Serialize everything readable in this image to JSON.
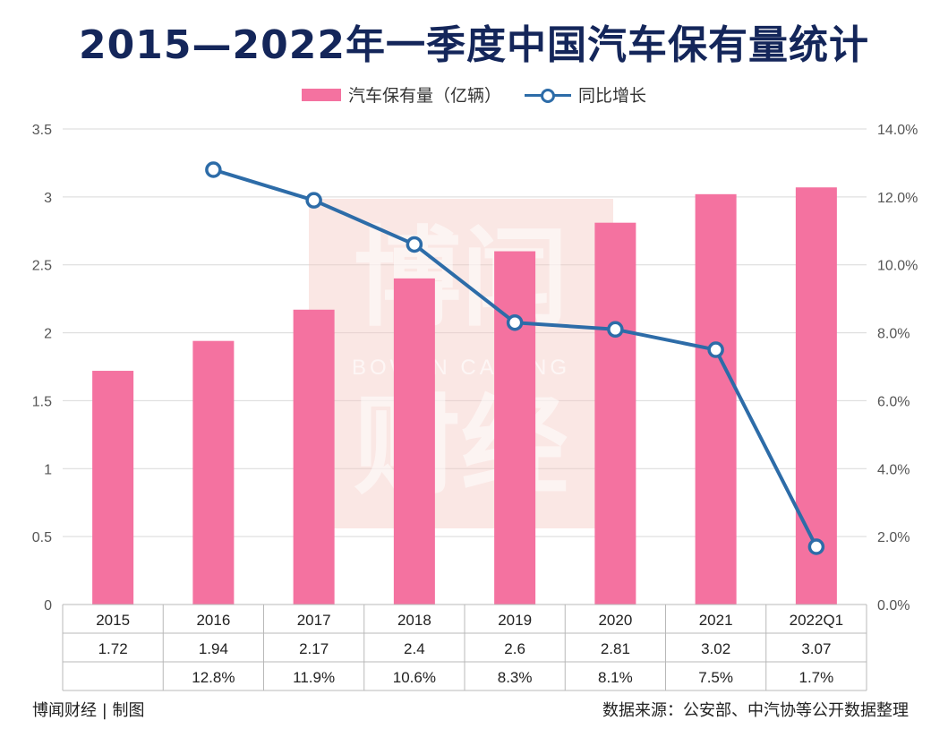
{
  "title": "2015—2022年一季度中国汽车保有量统计",
  "legend": {
    "bar_label": "汽车保有量（亿辆）",
    "line_label": "同比增长"
  },
  "colors": {
    "bar": "#f472a0",
    "line": "#2d6ca8",
    "title": "#14265a",
    "grid": "#d9d9d9"
  },
  "chart_data": {
    "type": "bar",
    "categories": [
      "2015",
      "2016",
      "2017",
      "2018",
      "2019",
      "2020",
      "2021",
      "2022Q1"
    ],
    "series": [
      {
        "name": "汽车保有量（亿辆）",
        "type": "bar",
        "axis": "left",
        "values": [
          1.72,
          1.94,
          2.17,
          2.4,
          2.6,
          2.81,
          3.02,
          3.07
        ]
      },
      {
        "name": "同比增长",
        "type": "line",
        "axis": "right",
        "values": [
          null,
          12.8,
          11.9,
          10.6,
          8.3,
          8.1,
          7.5,
          1.7
        ]
      }
    ],
    "ylim_left": [
      0,
      3.5
    ],
    "yticks_left": [
      "0",
      "0.5",
      "1",
      "1.5",
      "2",
      "2.5",
      "3",
      "3.5"
    ],
    "ylim_right": [
      0,
      14
    ],
    "yticks_right": [
      "0.0%",
      "2.0%",
      "4.0%",
      "6.0%",
      "8.0%",
      "10.0%",
      "12.0%",
      "14.0%"
    ],
    "table_rows": [
      [
        "1.72",
        "1.94",
        "2.17",
        "2.4",
        "2.6",
        "2.81",
        "3.02",
        "3.07"
      ],
      [
        "",
        "12.8%",
        "11.9%",
        "10.6%",
        "8.3%",
        "8.1%",
        "7.5%",
        "1.7%"
      ]
    ],
    "grid": true,
    "legend_position": "top"
  },
  "watermark": {
    "text_top": "博闻",
    "text_mid": "BOWEN CAIJING",
    "text_bottom": "财经"
  },
  "footer": {
    "left": "博闻财经 | 制图",
    "right": "数据来源：公安部、中汽协等公开数据整理"
  }
}
